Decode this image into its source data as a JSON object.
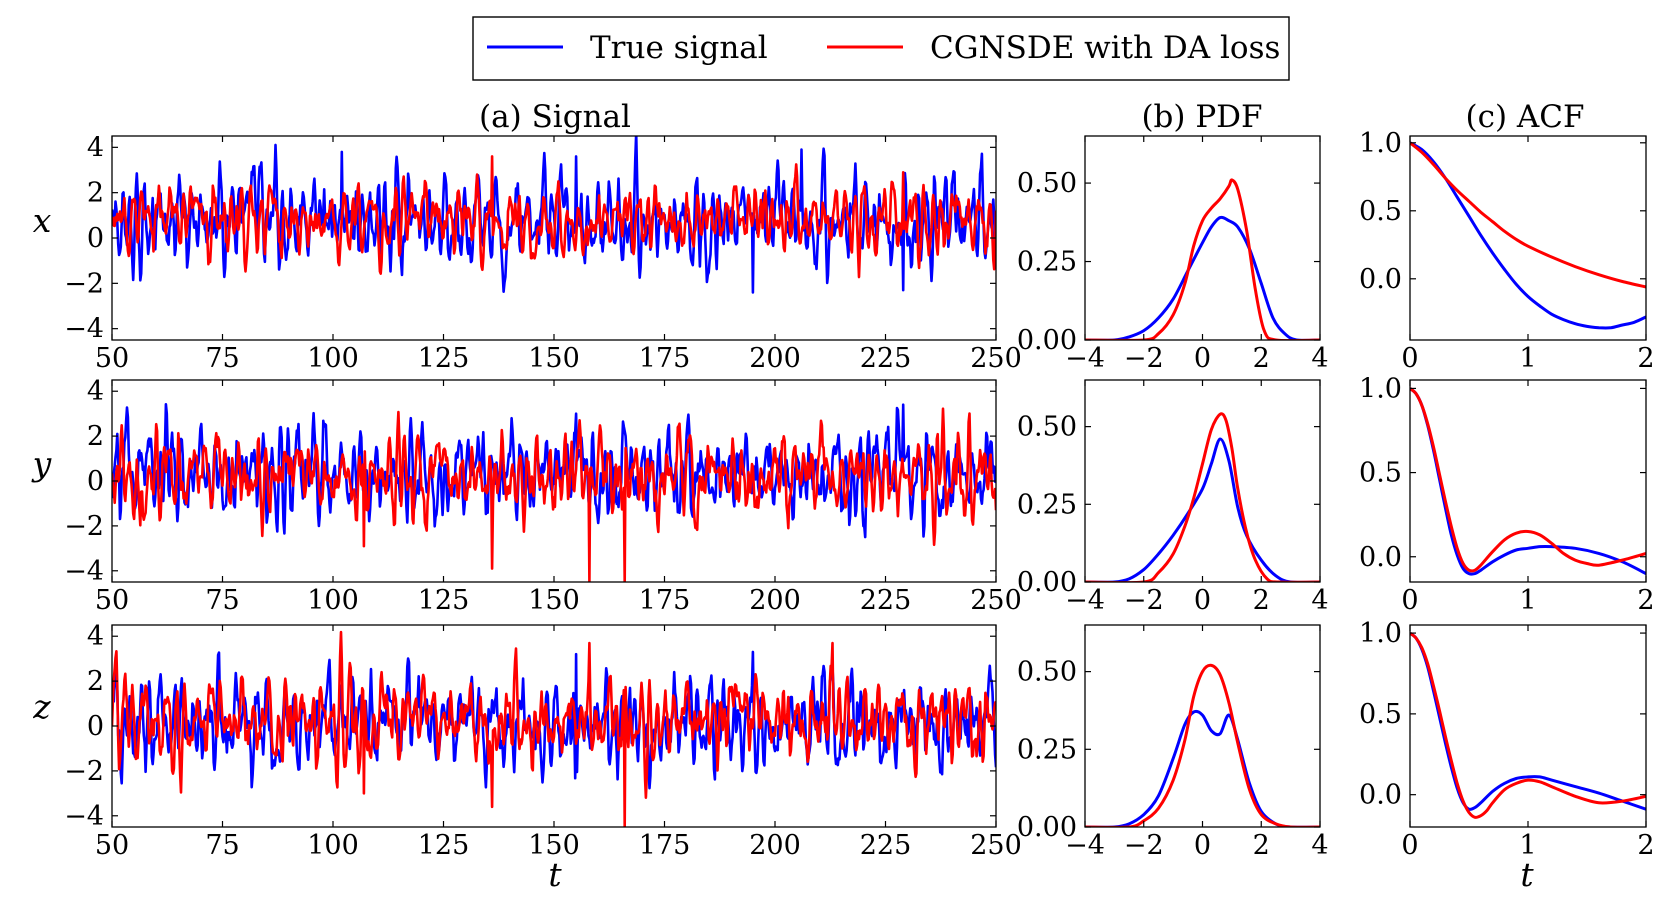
{
  "legend": {
    "entries": [
      {
        "label": "True signal",
        "color": "#0000ff"
      },
      {
        "label": "CGNSDE with DA loss",
        "color": "#ff0000"
      }
    ]
  },
  "columns": {
    "signal_title": "(a) Signal",
    "pdf_title": "(b) PDF",
    "acf_title": "(c) ACF"
  },
  "rows": [
    "x",
    "y",
    "z"
  ],
  "xlabels": {
    "signal": "t",
    "acf": "t"
  },
  "colors": {
    "true": "#0000ff",
    "model": "#ff0000"
  },
  "chart_data": [
    {
      "panel": "signal",
      "type": "line",
      "xlim": [
        50,
        250
      ],
      "ylim": [
        -4.5,
        4.5
      ],
      "xticks": [
        50,
        75,
        100,
        125,
        150,
        175,
        200,
        225,
        250
      ],
      "yticks": [
        -4,
        -2,
        0,
        2,
        4
      ],
      "rows": [
        {
          "variable": "x",
          "true": {
            "mean": 0.75,
            "std": 0.95,
            "peaks": [
              [
                102,
                3.8
              ],
              [
                206,
                3.9
              ],
              [
                195,
                -2.4
              ],
              [
                229,
                -2.3
              ],
              [
                155,
                3.6
              ]
            ]
          },
          "model": {
            "mean": 0.8,
            "std": 0.7,
            "peaks": [
              [
                136,
                3.6
              ],
              [
                229,
                2.9
              ]
            ]
          }
        },
        {
          "variable": "y",
          "true": {
            "mean": 0.35,
            "std": 1.0,
            "peaks": [
              [
                229,
                3.4
              ],
              [
                155,
                3.0
              ]
            ]
          },
          "model": {
            "mean": 0.2,
            "std": 0.85,
            "peaks": [
              [
                107,
                3.0
              ],
              [
                136,
                -3.9
              ],
              [
                158,
                -4.5
              ],
              [
                166,
                -4.5
              ],
              [
                107,
                -2.9
              ]
            ]
          }
        },
        {
          "variable": "z",
          "true": {
            "mean": 0.2,
            "std": 1.0,
            "peaks": [
              [
                155,
                3.2
              ],
              [
                195,
                3.3
              ]
            ]
          },
          "model": {
            "mean": 0.2,
            "std": 0.85,
            "peaks": [
              [
                158,
                3.7
              ],
              [
                166,
                -4.5
              ],
              [
                136,
                -3.6
              ],
              [
                213,
                3.7
              ],
              [
                107,
                -3.0
              ]
            ]
          }
        }
      ]
    },
    {
      "panel": "pdf",
      "type": "line",
      "xlim": [
        -4,
        4
      ],
      "ylim": [
        0,
        0.65
      ],
      "xticks": [
        -4,
        -2,
        0,
        2,
        4
      ],
      "yticks": [
        0.0,
        0.25,
        0.5
      ],
      "ytick_labels": [
        "0.00",
        "0.25",
        "0.50"
      ],
      "rows": [
        {
          "variable": "x",
          "true": {
            "x": [
              -4,
              -3,
              -2.5,
              -2,
              -1.5,
              -1,
              -0.5,
              0,
              0.3,
              0.6,
              0.9,
              1.2,
              1.6,
              2,
              2.4,
              2.8,
              3.2,
              4
            ],
            "y": [
              0,
              0,
              0.01,
              0.03,
              0.07,
              0.13,
              0.22,
              0.31,
              0.36,
              0.39,
              0.38,
              0.36,
              0.29,
              0.18,
              0.07,
              0.02,
              0,
              0
            ]
          },
          "model": {
            "x": [
              -4,
              -2,
              -1.5,
              -1,
              -0.6,
              -0.3,
              0,
              0.3,
              0.6,
              0.9,
              1.0,
              1.2,
              1.5,
              1.8,
              2.1,
              2.5,
              4
            ],
            "y": [
              0,
              0,
              0.02,
              0.08,
              0.18,
              0.3,
              0.38,
              0.42,
              0.45,
              0.49,
              0.51,
              0.48,
              0.35,
              0.16,
              0.03,
              0,
              0
            ]
          }
        },
        {
          "variable": "y",
          "true": {
            "x": [
              -4,
              -3,
              -2.5,
              -2,
              -1.5,
              -1,
              -0.5,
              0,
              0.3,
              0.6,
              0.9,
              1.2,
              1.5,
              2,
              2.5,
              3,
              4
            ],
            "y": [
              0,
              0,
              0.01,
              0.04,
              0.09,
              0.15,
              0.22,
              0.3,
              0.38,
              0.46,
              0.39,
              0.24,
              0.15,
              0.07,
              0.02,
              0,
              0
            ]
          },
          "model": {
            "x": [
              -4,
              -2,
              -1.5,
              -1,
              -0.6,
              -0.3,
              0,
              0.3,
              0.6,
              0.8,
              1.0,
              1.2,
              1.5,
              1.8,
              2.2,
              2.6,
              4
            ],
            "y": [
              0,
              0,
              0.03,
              0.09,
              0.18,
              0.27,
              0.38,
              0.49,
              0.54,
              0.52,
              0.43,
              0.3,
              0.16,
              0.07,
              0.01,
              0,
              0
            ]
          }
        },
        {
          "variable": "z",
          "true": {
            "x": [
              -4,
              -3,
              -2.5,
              -2,
              -1.5,
              -1,
              -0.6,
              -0.3,
              0,
              0.3,
              0.6,
              0.9,
              1.2,
              1.6,
              2,
              2.5,
              3,
              4
            ],
            "y": [
              0,
              0,
              0.01,
              0.04,
              0.1,
              0.22,
              0.33,
              0.37,
              0.36,
              0.31,
              0.3,
              0.36,
              0.28,
              0.14,
              0.05,
              0.01,
              0,
              0
            ]
          },
          "model": {
            "x": [
              -4,
              -2.5,
              -2,
              -1.5,
              -1,
              -0.6,
              -0.3,
              0,
              0.3,
              0.6,
              0.9,
              1.2,
              1.6,
              2,
              2.5,
              3,
              4
            ],
            "y": [
              0,
              0,
              0.02,
              0.06,
              0.15,
              0.28,
              0.42,
              0.5,
              0.52,
              0.49,
              0.4,
              0.27,
              0.12,
              0.04,
              0.01,
              0,
              0
            ]
          }
        }
      ]
    },
    {
      "panel": "acf",
      "type": "line",
      "xlim": [
        0,
        2
      ],
      "xticks": [
        0,
        1,
        2
      ],
      "rows": [
        {
          "variable": "x",
          "ylim": [
            -0.45,
            1.05
          ],
          "yticks": [
            0.0,
            0.5,
            1.0
          ],
          "ytick_labels": [
            "0.0",
            "0.5",
            "1.0"
          ],
          "true": {
            "x": [
              0,
              0.1,
              0.2,
              0.3,
              0.4,
              0.5,
              0.6,
              0.7,
              0.8,
              0.9,
              1.0,
              1.1,
              1.2,
              1.3,
              1.4,
              1.5,
              1.6,
              1.7,
              1.8,
              1.9,
              2.0
            ],
            "y": [
              1.0,
              0.95,
              0.86,
              0.74,
              0.6,
              0.46,
              0.32,
              0.19,
              0.07,
              -0.04,
              -0.13,
              -0.2,
              -0.26,
              -0.3,
              -0.33,
              -0.35,
              -0.36,
              -0.36,
              -0.34,
              -0.32,
              -0.28
            ]
          },
          "model": {
            "x": [
              0,
              0.1,
              0.2,
              0.3,
              0.4,
              0.5,
              0.6,
              0.7,
              0.8,
              0.9,
              1.0,
              1.2,
              1.4,
              1.6,
              1.8,
              2.0
            ],
            "y": [
              1.0,
              0.93,
              0.84,
              0.74,
              0.65,
              0.57,
              0.49,
              0.42,
              0.35,
              0.29,
              0.24,
              0.16,
              0.09,
              0.03,
              -0.02,
              -0.06
            ]
          }
        },
        {
          "variable": "y",
          "ylim": [
            -0.15,
            1.05
          ],
          "yticks": [
            0.0,
            0.5,
            1.0
          ],
          "ytick_labels": [
            "0.0",
            "0.5",
            "1.0"
          ],
          "true": {
            "x": [
              0,
              0.05,
              0.1,
              0.15,
              0.2,
              0.25,
              0.3,
              0.35,
              0.4,
              0.45,
              0.5,
              0.55,
              0.6,
              0.7,
              0.8,
              0.9,
              1.0,
              1.1,
              1.2,
              1.4,
              1.6,
              1.8,
              2.0
            ],
            "y": [
              1.0,
              0.97,
              0.9,
              0.78,
              0.63,
              0.46,
              0.29,
              0.13,
              0.01,
              -0.07,
              -0.1,
              -0.1,
              -0.08,
              -0.03,
              0.01,
              0.04,
              0.05,
              0.06,
              0.06,
              0.05,
              0.02,
              -0.03,
              -0.1
            ]
          },
          "model": {
            "x": [
              0,
              0.05,
              0.1,
              0.15,
              0.2,
              0.25,
              0.3,
              0.35,
              0.4,
              0.45,
              0.5,
              0.55,
              0.6,
              0.7,
              0.8,
              0.9,
              1.0,
              1.1,
              1.2,
              1.3,
              1.4,
              1.5,
              1.6,
              1.8,
              2.0
            ],
            "y": [
              1.0,
              0.97,
              0.9,
              0.79,
              0.65,
              0.49,
              0.33,
              0.18,
              0.05,
              -0.04,
              -0.08,
              -0.08,
              -0.05,
              0.03,
              0.1,
              0.14,
              0.15,
              0.13,
              0.08,
              0.02,
              -0.02,
              -0.04,
              -0.05,
              -0.02,
              0.02
            ]
          }
        },
        {
          "variable": "z",
          "ylim": [
            -0.2,
            1.05
          ],
          "yticks": [
            0.0,
            0.5,
            1.0
          ],
          "ytick_labels": [
            "0.0",
            "0.5",
            "1.0"
          ],
          "true": {
            "x": [
              0,
              0.05,
              0.1,
              0.15,
              0.2,
              0.25,
              0.3,
              0.35,
              0.4,
              0.45,
              0.5,
              0.55,
              0.6,
              0.7,
              0.8,
              0.9,
              1.0,
              1.1,
              1.2,
              1.4,
              1.6,
              1.8,
              2.0
            ],
            "y": [
              1.0,
              0.97,
              0.9,
              0.79,
              0.64,
              0.48,
              0.32,
              0.17,
              0.04,
              -0.05,
              -0.09,
              -0.08,
              -0.05,
              0.02,
              0.07,
              0.1,
              0.11,
              0.11,
              0.09,
              0.05,
              0.01,
              -0.04,
              -0.09
            ]
          },
          "model": {
            "x": [
              0,
              0.05,
              0.1,
              0.15,
              0.2,
              0.25,
              0.3,
              0.35,
              0.4,
              0.45,
              0.5,
              0.55,
              0.6,
              0.65,
              0.7,
              0.8,
              0.9,
              1.0,
              1.1,
              1.2,
              1.4,
              1.6,
              1.8,
              2.0
            ],
            "y": [
              1.0,
              0.97,
              0.91,
              0.81,
              0.67,
              0.52,
              0.36,
              0.21,
              0.07,
              -0.04,
              -0.11,
              -0.14,
              -0.13,
              -0.1,
              -0.05,
              0.03,
              0.07,
              0.09,
              0.08,
              0.05,
              -0.01,
              -0.05,
              -0.04,
              -0.01
            ]
          }
        }
      ]
    }
  ]
}
